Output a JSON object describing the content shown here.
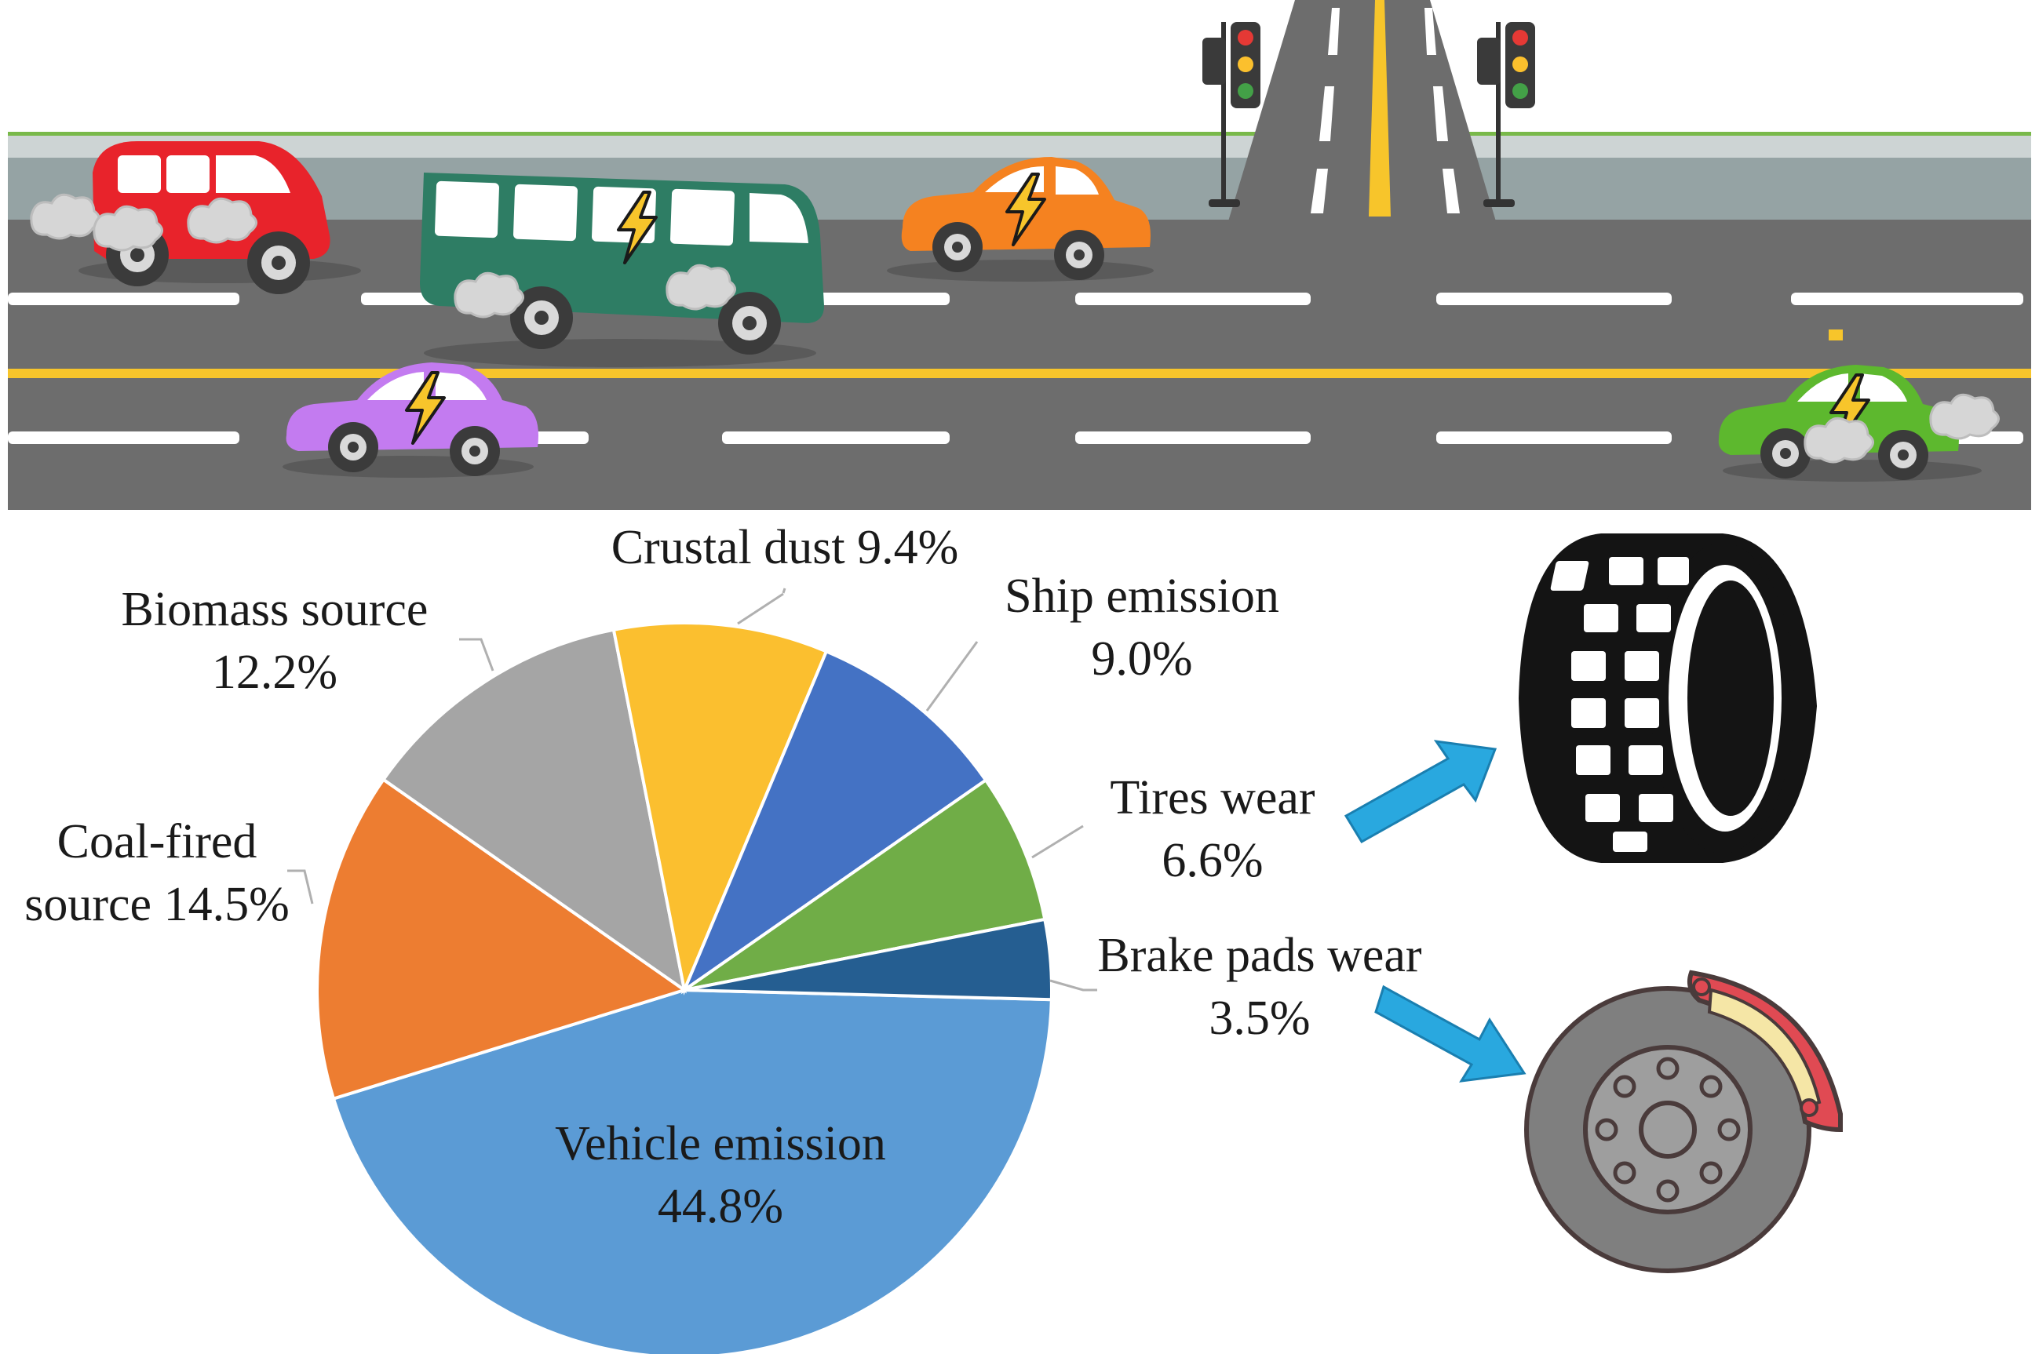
{
  "chart_data": {
    "type": "pie",
    "slices": [
      {
        "label": "Vehicle emission",
        "value": 44.8,
        "pct": "44.8%",
        "color": "#5B9BD5"
      },
      {
        "label": "Coal-fired source",
        "value": 14.5,
        "pct": "14.5%",
        "color": "#ED7D31"
      },
      {
        "label": "Biomass source",
        "value": 12.2,
        "pct": "12.2%",
        "color": "#A5A5A5"
      },
      {
        "label": "Crustal dust",
        "value": 9.4,
        "pct": "9.4%",
        "color": "#FBBF2F"
      },
      {
        "label": "Ship emission",
        "value": 9.0,
        "pct": "9.0%",
        "color": "#4472C4"
      },
      {
        "label": "Tires wear",
        "value": 6.6,
        "pct": "6.6%",
        "color": "#70AD47"
      },
      {
        "label": "Brake pads wear",
        "value": 3.5,
        "pct": "3.5%",
        "color": "#255E91"
      }
    ],
    "label_lines": {
      "vehicle": [
        "Vehicle emission",
        "44.8%"
      ],
      "coal": [
        "Coal-fired",
        "source 14.5%"
      ],
      "biomass": [
        "Biomass source",
        "12.2%"
      ],
      "crustal": [
        "Crustal dust 9.4%"
      ],
      "ship": [
        "Ship emission",
        "9.0%"
      ],
      "tires": [
        "Tires wear",
        "6.6%"
      ],
      "brake": [
        "Brake pads wear",
        "3.5%"
      ]
    }
  },
  "illustration": {
    "vehicles": [
      {
        "icon": "red-minivan-icon",
        "color": "#E8232B",
        "electric": false
      },
      {
        "icon": "green-bus-icon",
        "color": "#2E7D64",
        "electric": true
      },
      {
        "icon": "orange-car-icon",
        "color": "#F58220",
        "electric": true
      },
      {
        "icon": "purple-car-icon",
        "color": "#C37BF0",
        "electric": true
      },
      {
        "icon": "green-taxi-icon",
        "color": "#5DB82E",
        "electric": true
      }
    ],
    "road_color": "#6D6D6D",
    "lane_marking_color": "#FFFFFF",
    "center_line_color": "#F7C52B",
    "tire_icon": "tire-icon",
    "brake_icon": "brake-disc-icon",
    "arrow_color": "#29A8DF"
  }
}
